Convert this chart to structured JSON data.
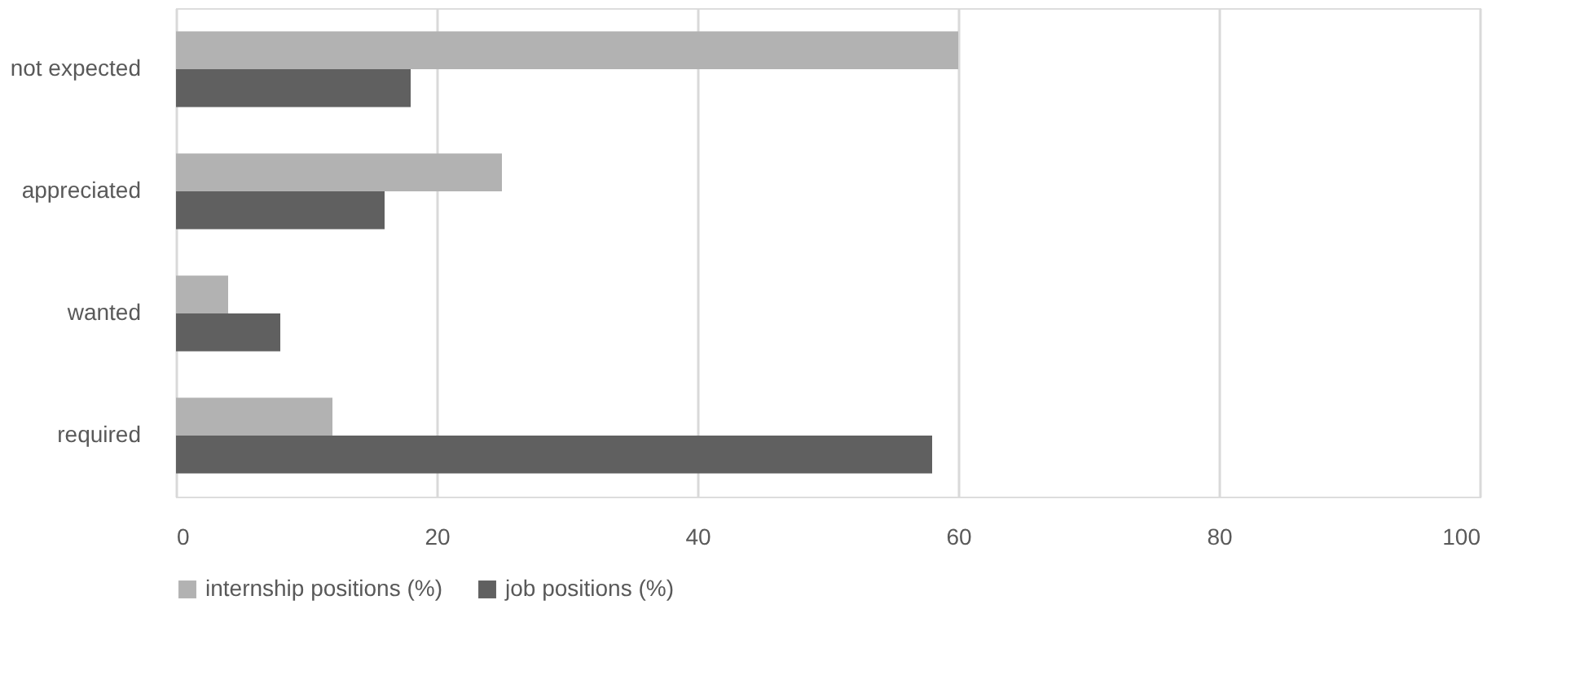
{
  "chart_data": {
    "type": "bar",
    "orientation": "horizontal",
    "categories": [
      "not expected",
      "appreciated",
      "wanted",
      "required"
    ],
    "series": [
      {
        "name": "internship positions (%)",
        "color": "#b2b2b2",
        "values": [
          60,
          25,
          4,
          12
        ]
      },
      {
        "name": "job positions (%)",
        "color": "#606060",
        "values": [
          18,
          16,
          8,
          58
        ]
      }
    ],
    "xlim": [
      0,
      100
    ],
    "xticks": [
      0,
      20,
      40,
      60,
      80,
      100
    ],
    "grid": "x",
    "legend": "bottom"
  }
}
